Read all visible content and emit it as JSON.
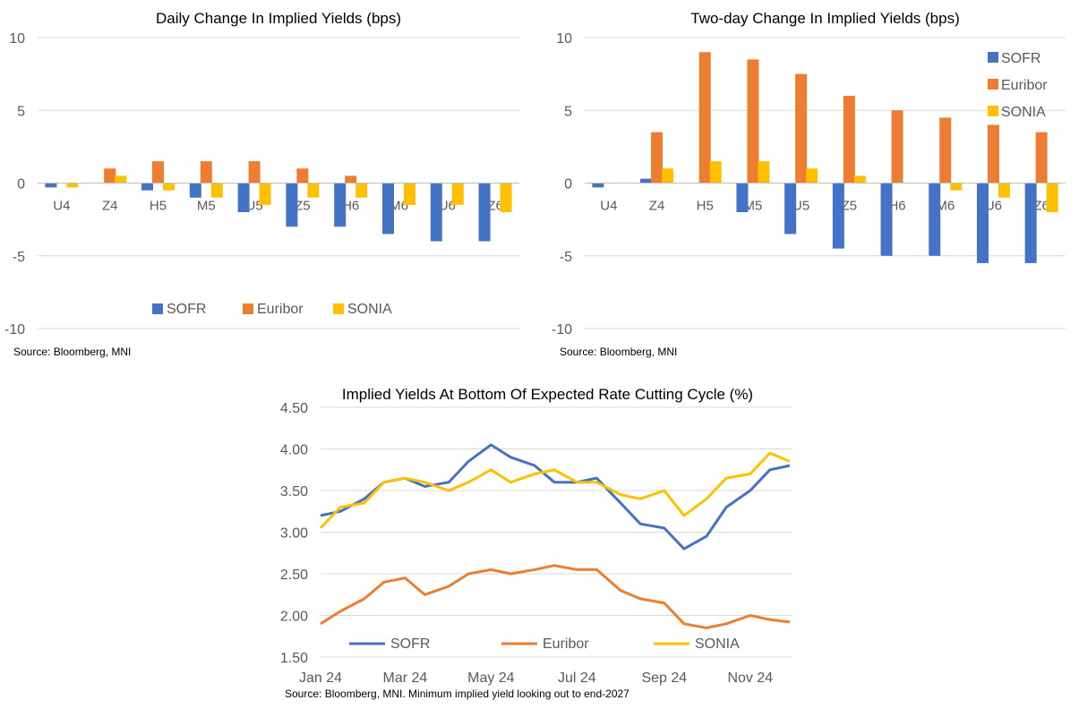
{
  "chart_data": [
    {
      "type": "bar",
      "title": "Daily Change In Implied Yields (bps)",
      "categories": [
        "U4",
        "Z4",
        "H5",
        "M5",
        "U5",
        "Z5",
        "H6",
        "M6",
        "U6",
        "Z6"
      ],
      "series": [
        {
          "name": "SOFR",
          "color": "#4472C4",
          "values": [
            -0.3,
            0,
            -0.5,
            -1,
            -2,
            -3,
            -3,
            -3.5,
            -4,
            -4
          ]
        },
        {
          "name": "Euribor",
          "color": "#ED7D31",
          "values": [
            0,
            1,
            1.5,
            1.5,
            1.5,
            1,
            0.5,
            0,
            0,
            0
          ]
        },
        {
          "name": "SONIA",
          "color": "#FFC000",
          "values": [
            -0.3,
            0.5,
            -0.5,
            -1,
            -1.5,
            -1,
            -1,
            -1.5,
            -1.5,
            -2
          ]
        }
      ],
      "ylim": [
        -10,
        10
      ],
      "yticks": [
        -10,
        -5,
        0,
        5,
        10
      ],
      "grid": true,
      "legend_position": "bottom",
      "source": "Source: Bloomberg, MNI"
    },
    {
      "type": "bar",
      "title": "Two-day Change In Implied Yields (bps)",
      "categories": [
        "U4",
        "Z4",
        "H5",
        "M5",
        "U5",
        "Z5",
        "H6",
        "M6",
        "U6",
        "Z6"
      ],
      "series": [
        {
          "name": "SOFR",
          "color": "#4472C4",
          "values": [
            -0.3,
            0.3,
            0,
            -2,
            -3.5,
            -4.5,
            -5,
            -5,
            -5.5,
            -5.5
          ]
        },
        {
          "name": "Euribor",
          "color": "#ED7D31",
          "values": [
            0,
            3.5,
            9,
            8.5,
            7.5,
            6,
            5,
            4.5,
            4,
            3.5
          ]
        },
        {
          "name": "SONIA",
          "color": "#FFC000",
          "values": [
            0,
            1,
            1.5,
            1.5,
            1,
            0.5,
            0,
            -0.5,
            -1,
            -2
          ]
        }
      ],
      "ylim": [
        -10,
        10
      ],
      "yticks": [
        -10,
        -5,
        0,
        5,
        10
      ],
      "grid": true,
      "legend_position": "top-right",
      "source": "Source: Bloomberg, MNI"
    },
    {
      "type": "line",
      "title": "Implied Yields At Bottom Of Expected Rate Cutting Cycle (%)",
      "x": [
        "2024-01-01",
        "2024-01-15",
        "2024-02-01",
        "2024-02-15",
        "2024-03-01",
        "2024-03-15",
        "2024-04-01",
        "2024-04-15",
        "2024-05-01",
        "2024-05-15",
        "2024-06-01",
        "2024-06-15",
        "2024-07-01",
        "2024-07-15",
        "2024-08-01",
        "2024-08-15",
        "2024-09-01",
        "2024-09-15",
        "2024-10-01",
        "2024-10-15",
        "2024-11-01",
        "2024-11-15",
        "2024-11-29"
      ],
      "xtick_labels": [
        "Jan 24",
        "Mar 24",
        "May 24",
        "Jul 24",
        "Sep 24",
        "Nov 24"
      ],
      "xtick_dates": [
        "2024-01-01",
        "2024-03-01",
        "2024-05-01",
        "2024-07-01",
        "2024-09-01",
        "2024-11-01"
      ],
      "series": [
        {
          "name": "SOFR",
          "color": "#4472C4",
          "values": [
            3.2,
            3.25,
            3.4,
            3.6,
            3.65,
            3.55,
            3.6,
            3.85,
            4.05,
            3.9,
            3.8,
            3.6,
            3.6,
            3.65,
            3.35,
            3.1,
            3.05,
            2.8,
            2.95,
            3.3,
            3.5,
            3.75,
            3.8
          ]
        },
        {
          "name": "Euribor",
          "color": "#ED7D31",
          "values": [
            1.9,
            2.05,
            2.2,
            2.4,
            2.45,
            2.25,
            2.35,
            2.5,
            2.55,
            2.5,
            2.55,
            2.6,
            2.55,
            2.55,
            2.3,
            2.2,
            2.15,
            1.9,
            1.85,
            1.9,
            2.0,
            1.95,
            1.92
          ]
        },
        {
          "name": "SONIA",
          "color": "#FFC000",
          "values": [
            3.05,
            3.3,
            3.35,
            3.6,
            3.65,
            3.6,
            3.5,
            3.6,
            3.75,
            3.6,
            3.7,
            3.75,
            3.6,
            3.6,
            3.45,
            3.4,
            3.5,
            3.2,
            3.4,
            3.65,
            3.7,
            3.95,
            3.85
          ]
        }
      ],
      "ylim": [
        1.5,
        4.5
      ],
      "yticks": [
        1.5,
        2.0,
        2.5,
        3.0,
        3.5,
        4.0,
        4.5
      ],
      "ytick_labels": [
        "1.50",
        "2.00",
        "2.50",
        "3.00",
        "3.50",
        "4.00",
        "4.50"
      ],
      "grid": true,
      "legend_position": "bottom",
      "source": "Source: Bloomberg, MNI. Minimum implied yield looking out to end-2027"
    }
  ]
}
